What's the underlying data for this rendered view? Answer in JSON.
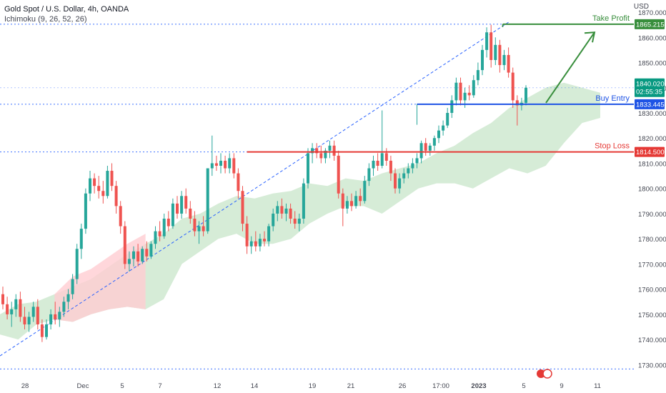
{
  "header": {
    "symbol_line": "Gold Spot / U.S. Dollar, 4h, OANDA",
    "indicator_line": "Ichimoku (9, 26, 52, 26)",
    "currency": "USD"
  },
  "colors": {
    "up": "#26a69a",
    "down": "#ef5350",
    "cloud_bull": "#c8e6c9",
    "cloud_bear": "#ffcdd2",
    "take_profit": "#388e3c",
    "buy_entry": "#1e53e5",
    "stop_loss": "#e53935",
    "grid_dotted": "#2962ff",
    "price_box": "#089981"
  },
  "chart_data": {
    "type": "candlestick",
    "symbol": "XAUUSD",
    "timeframe": "4h",
    "ylim": [
      1725,
      1872
    ],
    "y_ticks": [
      1730,
      1740,
      1750,
      1760,
      1770,
      1780,
      1790,
      1800,
      1810,
      1820,
      1830,
      1840,
      1850,
      1860,
      1870
    ],
    "y_tick_labels": [
      "1730.000",
      "1740.000",
      "1750.000",
      "1760.000",
      "1770.000",
      "1780.000",
      "1790.000",
      "1800.000",
      "1810.000",
      "1820.000",
      "1830.000",
      "1840.000",
      "1850.000",
      "1860.000",
      "1870.000"
    ],
    "x_tick_labels": [
      "28",
      "Dec",
      "5",
      "7",
      "12",
      "14",
      "19",
      "21",
      "26",
      "17:00",
      "2023",
      "5",
      "9",
      "11"
    ],
    "price_labels": {
      "take_profit": "1865.215",
      "current": "1840.020",
      "countdown": "02:55:35",
      "buy_entry": "1833.445",
      "stop_loss": "1814.500"
    },
    "levels": [
      {
        "name": "Take Profit",
        "value": 1865.215
      },
      {
        "name": "Buy Entry",
        "value": 1833.445
      },
      {
        "name": "Stop Loss",
        "value": 1814.5
      }
    ],
    "horizontal_dotted_levels": [
      1865.215,
      1840.02,
      1833.445,
      1814.5,
      1728.3
    ],
    "trendline": {
      "from": [
        0,
        1733.5
      ],
      "to": [
        116,
        1866
      ]
    },
    "ohlc": [
      [
        1758.0,
        1761.0,
        1752.0,
        1754.0
      ],
      [
        1754.0,
        1757.0,
        1748.0,
        1750.0
      ],
      [
        1750.0,
        1755.0,
        1745.0,
        1752.0
      ],
      [
        1752.0,
        1758.0,
        1749.0,
        1756.0
      ],
      [
        1756.0,
        1759.0,
        1747.0,
        1749.0
      ],
      [
        1749.0,
        1753.0,
        1744.0,
        1746.0
      ],
      [
        1746.0,
        1751.0,
        1743.0,
        1749.0
      ],
      [
        1749.0,
        1755.0,
        1747.0,
        1753.0
      ],
      [
        1753.0,
        1756.0,
        1744.0,
        1746.0
      ],
      [
        1746.0,
        1748.0,
        1739.0,
        1741.0
      ],
      [
        1741.0,
        1748.0,
        1740.0,
        1746.0
      ],
      [
        1746.0,
        1752.0,
        1744.0,
        1750.0
      ],
      [
        1750.0,
        1755.0,
        1746.0,
        1748.0
      ],
      [
        1748.0,
        1753.0,
        1745.0,
        1751.0
      ],
      [
        1751.0,
        1757.0,
        1749.0,
        1755.0
      ],
      [
        1755.0,
        1760.0,
        1752.0,
        1758.0
      ],
      [
        1758.0,
        1766.0,
        1756.0,
        1764.0
      ],
      [
        1764.0,
        1778.0,
        1762.0,
        1776.0
      ],
      [
        1776.0,
        1786.0,
        1772.0,
        1784.0
      ],
      [
        1784.0,
        1800.0,
        1782.0,
        1798.0
      ],
      [
        1798.0,
        1807.0,
        1795.0,
        1804.0
      ],
      [
        1804.0,
        1806.0,
        1798.0,
        1801.0
      ],
      [
        1801.0,
        1805.0,
        1796.0,
        1799.0
      ],
      [
        1799.0,
        1803.0,
        1794.0,
        1797.0
      ],
      [
        1797.0,
        1809.0,
        1796.0,
        1807.0
      ],
      [
        1807.0,
        1810.0,
        1799.0,
        1801.0
      ],
      [
        1801.0,
        1803.0,
        1790.0,
        1793.0
      ],
      [
        1793.0,
        1795.0,
        1782.0,
        1785.0
      ],
      [
        1785.0,
        1787.0,
        1768.0,
        1770.0
      ],
      [
        1770.0,
        1775.0,
        1767.0,
        1772.0
      ],
      [
        1772.0,
        1777.0,
        1769.0,
        1775.0
      ],
      [
        1775.0,
        1778.0,
        1769.0,
        1771.0
      ],
      [
        1771.0,
        1777.0,
        1770.0,
        1776.0
      ],
      [
        1776.0,
        1779.0,
        1771.0,
        1773.0
      ],
      [
        1773.0,
        1779.0,
        1772.0,
        1778.0
      ],
      [
        1778.0,
        1785.0,
        1776.0,
        1783.0
      ],
      [
        1783.0,
        1787.0,
        1779.0,
        1781.0
      ],
      [
        1781.0,
        1790.0,
        1780.0,
        1788.0
      ],
      [
        1788.0,
        1791.0,
        1783.0,
        1785.0
      ],
      [
        1785.0,
        1796.0,
        1784.0,
        1794.0
      ],
      [
        1794.0,
        1797.0,
        1788.0,
        1790.0
      ],
      [
        1790.0,
        1799.0,
        1788.0,
        1797.0
      ],
      [
        1797.0,
        1800.0,
        1790.0,
        1792.0
      ],
      [
        1792.0,
        1795.0,
        1786.0,
        1788.0
      ],
      [
        1788.0,
        1791.0,
        1781.0,
        1783.0
      ],
      [
        1783.0,
        1787.0,
        1778.0,
        1785.0
      ],
      [
        1785.0,
        1789.0,
        1781.0,
        1783.0
      ],
      [
        1783.0,
        1808.0,
        1782.0,
        1808.0
      ],
      [
        1808.0,
        1821.0,
        1805.0,
        1810.0
      ],
      [
        1810.0,
        1813.0,
        1807.0,
        1809.0
      ],
      [
        1809.0,
        1814.0,
        1806.0,
        1811.0
      ],
      [
        1811.0,
        1813.0,
        1806.0,
        1808.0
      ],
      [
        1808.0,
        1814.0,
        1806.0,
        1812.0
      ],
      [
        1812.0,
        1814.0,
        1804.0,
        1806.0
      ],
      [
        1806.0,
        1808.0,
        1796.0,
        1799.0
      ],
      [
        1799.0,
        1801.0,
        1783.0,
        1786.0
      ],
      [
        1786.0,
        1789.0,
        1774.0,
        1777.0
      ],
      [
        1777.0,
        1781.0,
        1774.0,
        1779.0
      ],
      [
        1779.0,
        1783.0,
        1775.0,
        1777.0
      ],
      [
        1777.0,
        1782.0,
        1775.0,
        1780.0
      ],
      [
        1780.0,
        1783.0,
        1777.0,
        1779.0
      ],
      [
        1779.0,
        1786.0,
        1777.0,
        1785.0
      ],
      [
        1785.0,
        1792.0,
        1783.0,
        1790.0
      ],
      [
        1790.0,
        1795.0,
        1787.0,
        1793.0
      ],
      [
        1793.0,
        1796.0,
        1788.0,
        1790.0
      ],
      [
        1790.0,
        1794.0,
        1787.0,
        1792.0
      ],
      [
        1792.0,
        1794.0,
        1786.0,
        1788.0
      ],
      [
        1788.0,
        1791.0,
        1784.0,
        1786.0
      ],
      [
        1786.0,
        1790.0,
        1783.0,
        1788.0
      ],
      [
        1788.0,
        1804.0,
        1786.0,
        1802.0
      ],
      [
        1802.0,
        1816.0,
        1800.0,
        1814.0
      ],
      [
        1814.0,
        1818.0,
        1810.0,
        1816.0
      ],
      [
        1816.0,
        1818.0,
        1812.0,
        1814.0
      ],
      [
        1814.0,
        1817.0,
        1810.0,
        1812.0
      ],
      [
        1812.0,
        1816.0,
        1810.0,
        1815.0
      ],
      [
        1815.0,
        1819.0,
        1812.0,
        1817.0
      ],
      [
        1817.0,
        1819.0,
        1811.0,
        1813.0
      ],
      [
        1813.0,
        1815.0,
        1796.0,
        1798.0
      ],
      [
        1798.0,
        1800.0,
        1785.0,
        1792.0
      ],
      [
        1792.0,
        1797.0,
        1790.0,
        1795.0
      ],
      [
        1795.0,
        1798.0,
        1791.0,
        1793.0
      ],
      [
        1793.0,
        1799.0,
        1792.0,
        1797.0
      ],
      [
        1797.0,
        1800.0,
        1793.0,
        1795.0
      ],
      [
        1795.0,
        1805.0,
        1794.0,
        1803.0
      ],
      [
        1803.0,
        1810.0,
        1801.0,
        1808.0
      ],
      [
        1808.0,
        1813.0,
        1805.0,
        1811.0
      ],
      [
        1811.0,
        1814.0,
        1807.0,
        1809.0
      ],
      [
        1809.0,
        1831.0,
        1808.0,
        1814.0
      ],
      [
        1814.0,
        1816.0,
        1809.0,
        1811.0
      ],
      [
        1811.0,
        1813.0,
        1803.0,
        1806.0
      ],
      [
        1806.0,
        1808.0,
        1798.0,
        1800.0
      ],
      [
        1800.0,
        1806.0,
        1798.0,
        1804.0
      ],
      [
        1804.0,
        1808.0,
        1802.0,
        1806.0
      ],
      [
        1806.0,
        1810.0,
        1804.0,
        1808.0
      ],
      [
        1808.0,
        1812.0,
        1806.0,
        1810.0
      ],
      [
        1810.0,
        1814.0,
        1808.0,
        1812.0
      ],
      [
        1812.0,
        1819.0,
        1810.0,
        1818.0
      ],
      [
        1818.0,
        1820.0,
        1813.0,
        1815.0
      ],
      [
        1815.0,
        1818.0,
        1813.0,
        1817.0
      ],
      [
        1817.0,
        1821.0,
        1815.0,
        1820.0
      ],
      [
        1820.0,
        1825.0,
        1818.0,
        1823.0
      ],
      [
        1823.0,
        1827.0,
        1821.0,
        1825.0
      ],
      [
        1825.0,
        1832.0,
        1824.0,
        1830.0
      ],
      [
        1830.0,
        1837.0,
        1828.0,
        1835.0
      ],
      [
        1835.0,
        1844.0,
        1833.0,
        1842.0
      ],
      [
        1842.0,
        1844.0,
        1833.0,
        1835.0
      ],
      [
        1835.0,
        1840.0,
        1832.0,
        1838.0
      ],
      [
        1838.0,
        1841.0,
        1835.0,
        1837.0
      ],
      [
        1837.0,
        1845.0,
        1836.0,
        1843.0
      ],
      [
        1843.0,
        1850.0,
        1841.0,
        1847.0
      ],
      [
        1847.0,
        1857.0,
        1845.0,
        1855.0
      ],
      [
        1855.0,
        1864.0,
        1852.0,
        1862.0
      ],
      [
        1862.0,
        1865.0,
        1848.0,
        1851.0
      ],
      [
        1851.0,
        1860.0,
        1849.0,
        1857.0
      ],
      [
        1857.0,
        1859.0,
        1846.0,
        1849.0
      ],
      [
        1849.0,
        1855.0,
        1847.0,
        1853.0
      ],
      [
        1853.0,
        1856.0,
        1844.0,
        1846.0
      ],
      [
        1846.0,
        1848.0,
        1832.0,
        1835.0
      ],
      [
        1835.0,
        1837.0,
        1825.0,
        1833.0
      ],
      [
        1833.0,
        1836.0,
        1831.0,
        1834.0
      ],
      [
        1834.0,
        1841.0,
        1833.0,
        1840.0
      ]
    ],
    "cloud": {
      "upper": [
        1750.0,
        1754.0,
        1755.0,
        1758.0,
        1761.0,
        1764.0,
        1769.0,
        1774.0,
        1778.0,
        1782.0,
        1788.0,
        1790.0,
        1794.0,
        1797.0,
        1796.0,
        1798.0,
        1799.0,
        1802.0,
        1801.0,
        1804.0,
        1803.0,
        1806.0,
        1808.0,
        1810.0,
        1814.0,
        1817.0,
        1822.0,
        1826.0,
        1832.0,
        1836.0,
        1840.0,
        1842.0,
        1840.0,
        1838.0
      ],
      "lower": [
        1742.0,
        1740.0,
        1746.0,
        1748.0,
        1747.0,
        1750.0,
        1752.0,
        1753.0,
        1752.0,
        1756.0,
        1770.0,
        1775.0,
        1780.0,
        1782.0,
        1778.0,
        1778.0,
        1780.0,
        1786.0,
        1790.0,
        1793.0,
        1793.0,
        1790.0,
        1795.0,
        1800.0,
        1802.0,
        1802.0,
        1800.0,
        1804.0,
        1808.0,
        1806.0,
        1809.0,
        1818.0,
        1826.0,
        1828.0
      ],
      "bearish_segment": [
        3,
        8
      ]
    }
  }
}
